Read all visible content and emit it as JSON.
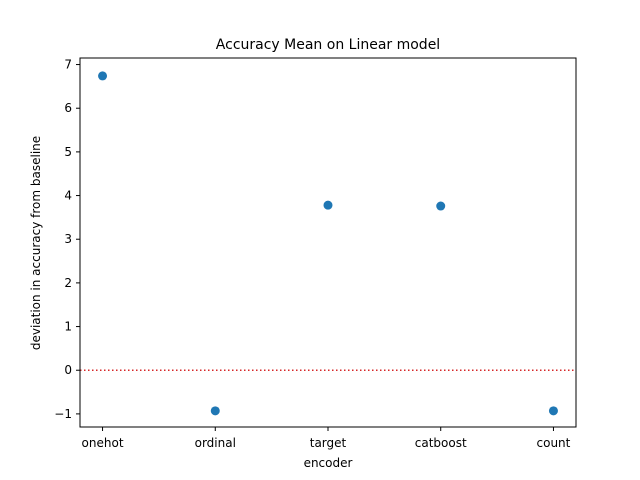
{
  "chart_data": {
    "type": "scatter",
    "title": "Accuracy Mean on Linear model",
    "xlabel": "encoder",
    "ylabel": "deviation in accuracy from baseline",
    "categories": [
      "onehot",
      "ordinal",
      "target",
      "catboost",
      "count"
    ],
    "values": [
      6.74,
      -0.93,
      3.78,
      3.76,
      -0.93
    ],
    "ylim": [
      -1.3,
      7.15
    ],
    "yticks": [
      -1,
      0,
      1,
      2,
      3,
      4,
      5,
      6,
      7
    ],
    "ytick_labels": [
      "−1",
      "0",
      "1",
      "2",
      "3",
      "4",
      "5",
      "6",
      "7"
    ],
    "reference_line": {
      "y": 0,
      "color": "#d62728",
      "style": "dotted"
    },
    "marker_color": "#1f77b4",
    "grid": false
  }
}
